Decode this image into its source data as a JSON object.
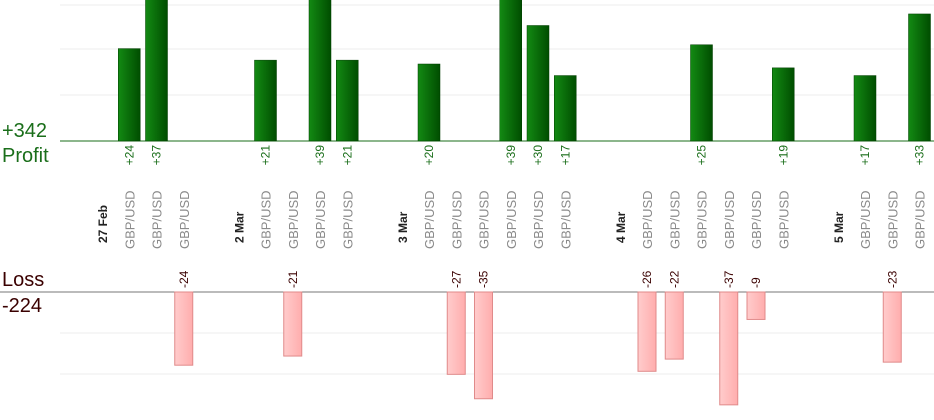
{
  "summary": {
    "profit_total": "+342",
    "profit_label": "Profit",
    "loss_label": "Loss",
    "loss_total": "-224"
  },
  "colors": {
    "profit_bar": "#0b6b0b",
    "profit_text": "#1a6e1a",
    "loss_bar": "#ffb3b3",
    "loss_border": "#e08a8a",
    "loss_text": "#3a0000",
    "column_label": "#8a8a8a",
    "date_label": "#222222"
  },
  "chart_data": {
    "type": "bar",
    "columns": [
      {
        "label": "27 Feb",
        "kind": "date"
      },
      {
        "label": "GBP/USD",
        "kind": "trade",
        "value": 24
      },
      {
        "label": "GBP/USD",
        "kind": "trade",
        "value": 37
      },
      {
        "label": "GBP/USD",
        "kind": "trade",
        "value": -24
      },
      {
        "label": "",
        "kind": "spacer"
      },
      {
        "label": "2 Mar",
        "kind": "date"
      },
      {
        "label": "GBP/USD",
        "kind": "trade",
        "value": 21
      },
      {
        "label": "GBP/USD",
        "kind": "trade",
        "value": -21
      },
      {
        "label": "GBP/USD",
        "kind": "trade",
        "value": 39
      },
      {
        "label": "GBP/USD",
        "kind": "trade",
        "value": 21
      },
      {
        "label": "",
        "kind": "spacer"
      },
      {
        "label": "3 Mar",
        "kind": "date"
      },
      {
        "label": "GBP/USD",
        "kind": "trade",
        "value": 20
      },
      {
        "label": "GBP/USD",
        "kind": "trade",
        "value": -27
      },
      {
        "label": "GBP/USD",
        "kind": "trade",
        "value": -35
      },
      {
        "label": "GBP/USD",
        "kind": "trade",
        "value": 39
      },
      {
        "label": "GBP/USD",
        "kind": "trade",
        "value": 30
      },
      {
        "label": "GBP/USD",
        "kind": "trade",
        "value": 17
      },
      {
        "label": "",
        "kind": "spacer"
      },
      {
        "label": "4 Mar",
        "kind": "date"
      },
      {
        "label": "GBP/USD",
        "kind": "trade",
        "value": -26
      },
      {
        "label": "GBP/USD",
        "kind": "trade",
        "value": -22
      },
      {
        "label": "GBP/USD",
        "kind": "trade",
        "value": 25
      },
      {
        "label": "GBP/USD",
        "kind": "trade",
        "value": -37
      },
      {
        "label": "GBP/USD",
        "kind": "trade",
        "value": -9
      },
      {
        "label": "GBP/USD",
        "kind": "trade",
        "value": 19
      },
      {
        "label": "",
        "kind": "spacer"
      },
      {
        "label": "5 Mar",
        "kind": "date"
      },
      {
        "label": "GBP/USD",
        "kind": "trade",
        "value": 17
      },
      {
        "label": "GBP/USD",
        "kind": "trade",
        "value": -23
      },
      {
        "label": "GBP/USD",
        "kind": "trade",
        "value": 33
      }
    ],
    "profit_axis_ylim": [
      0,
      37
    ],
    "loss_axis_ylim": [
      -42,
      0
    ],
    "grid": true
  }
}
